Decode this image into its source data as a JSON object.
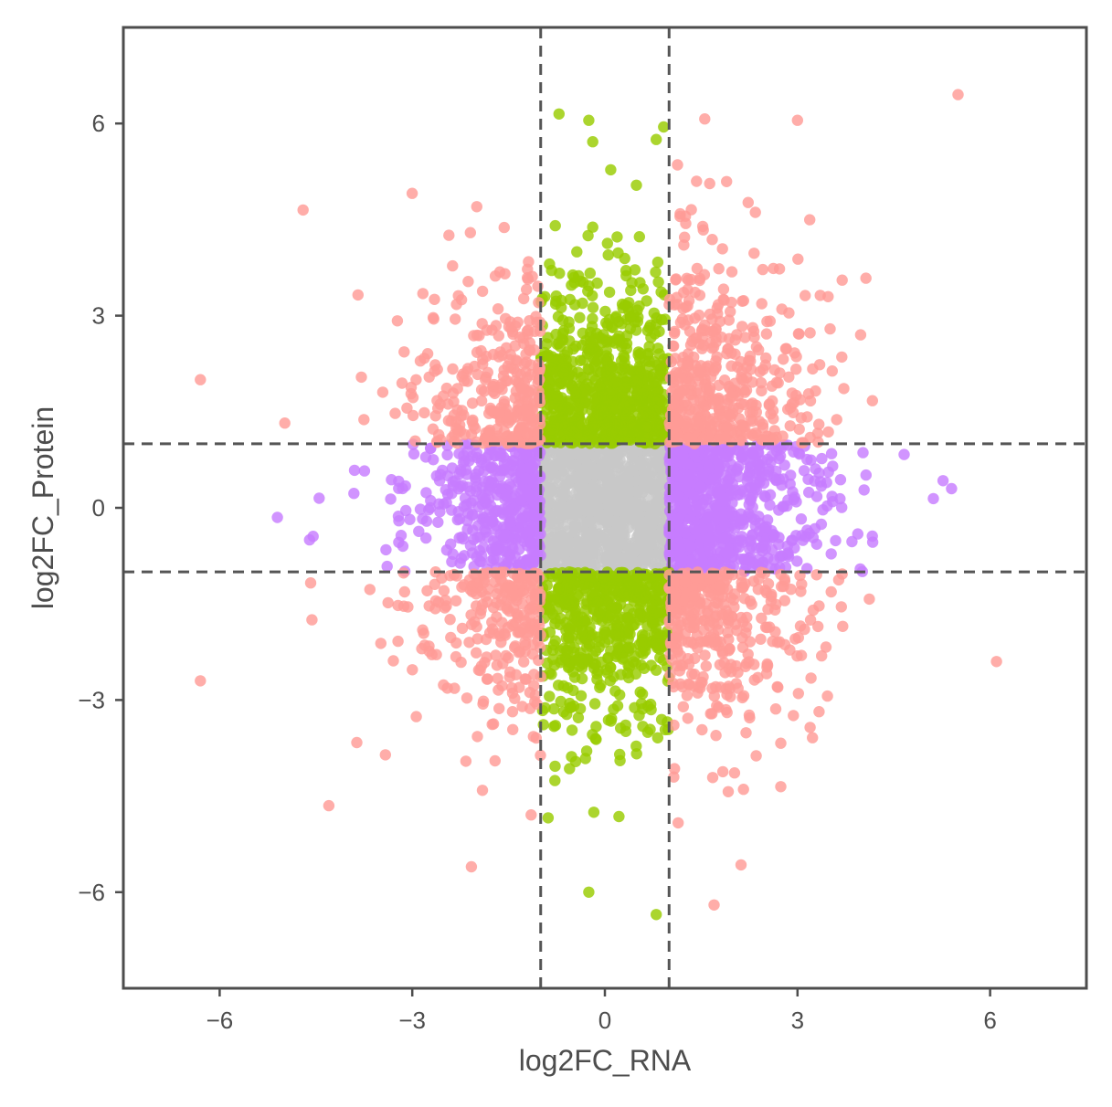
{
  "chart_data": {
    "type": "scatter",
    "title": "",
    "xlabel": "log2FC_RNA",
    "ylabel": "log2FC_Protein",
    "xlim": [
      -7.5,
      7.5
    ],
    "ylim": [
      -7.5,
      7.5
    ],
    "x_ticks": [
      -6,
      -3,
      0,
      3,
      6
    ],
    "y_ticks": [
      -6,
      -3,
      0,
      3,
      6
    ],
    "x_tick_labels": [
      "−6",
      "−3",
      "0",
      "3",
      "6"
    ],
    "y_tick_labels": [
      "−6",
      "−3",
      "0",
      "3",
      "6"
    ],
    "thresholds": {
      "vertical": [
        -1,
        1
      ],
      "horizontal": [
        -1,
        1
      ]
    },
    "grid": false,
    "legend": "none",
    "colors": {
      "both_significant": "#ff9b96",
      "protein_only": "#99cc00",
      "rna_only": "#c77cff",
      "not_significant": "#c8c8c8",
      "threshold_line": "#555555",
      "axis": "#4d4d4d"
    },
    "point_groups": [
      {
        "group": "both_significant",
        "color": "#ff9b96",
        "count": 1400,
        "x_abs_range": [
          1,
          6.3
        ],
        "y_abs_range": [
          1,
          6.5
        ]
      },
      {
        "group": "protein_only",
        "color": "#99cc00",
        "count": 1300,
        "x_range": [
          -1,
          1
        ],
        "y_abs_range": [
          1,
          6.3
        ]
      },
      {
        "group": "rna_only",
        "color": "#c77cff",
        "count": 1200,
        "x_abs_range": [
          1,
          5.4
        ],
        "y_range": [
          -1,
          1
        ]
      },
      {
        "group": "not_significant",
        "color": "#c8c8c8",
        "count": 1100,
        "x_range": [
          -1,
          1
        ],
        "y_range": [
          -1,
          1
        ]
      }
    ],
    "notable_points": [
      {
        "x": 5.5,
        "y": 6.45,
        "group": "both_significant"
      },
      {
        "x": -4.7,
        "y": 4.65,
        "group": "both_significant"
      },
      {
        "x": -6.3,
        "y": 2.0,
        "group": "both_significant"
      },
      {
        "x": -6.3,
        "y": -2.7,
        "group": "both_significant"
      },
      {
        "x": -4.3,
        "y": -4.65,
        "group": "both_significant"
      },
      {
        "x": 6.1,
        "y": -2.4,
        "group": "both_significant"
      },
      {
        "x": 1.7,
        "y": -6.2,
        "group": "both_significant"
      },
      {
        "x": 3.0,
        "y": 6.05,
        "group": "both_significant"
      },
      {
        "x": -0.25,
        "y": 6.05,
        "group": "protein_only"
      },
      {
        "x": 0.8,
        "y": 5.75,
        "group": "protein_only"
      },
      {
        "x": -0.25,
        "y": -6.0,
        "group": "protein_only"
      },
      {
        "x": 0.8,
        "y": -6.35,
        "group": "protein_only"
      },
      {
        "x": -5.1,
        "y": -0.15,
        "group": "rna_only"
      },
      {
        "x": -4.45,
        "y": 0.15,
        "group": "rna_only"
      },
      {
        "x": 5.4,
        "y": 0.3,
        "group": "rna_only"
      },
      {
        "x": -4.6,
        "y": -0.5,
        "group": "rna_only"
      }
    ]
  }
}
